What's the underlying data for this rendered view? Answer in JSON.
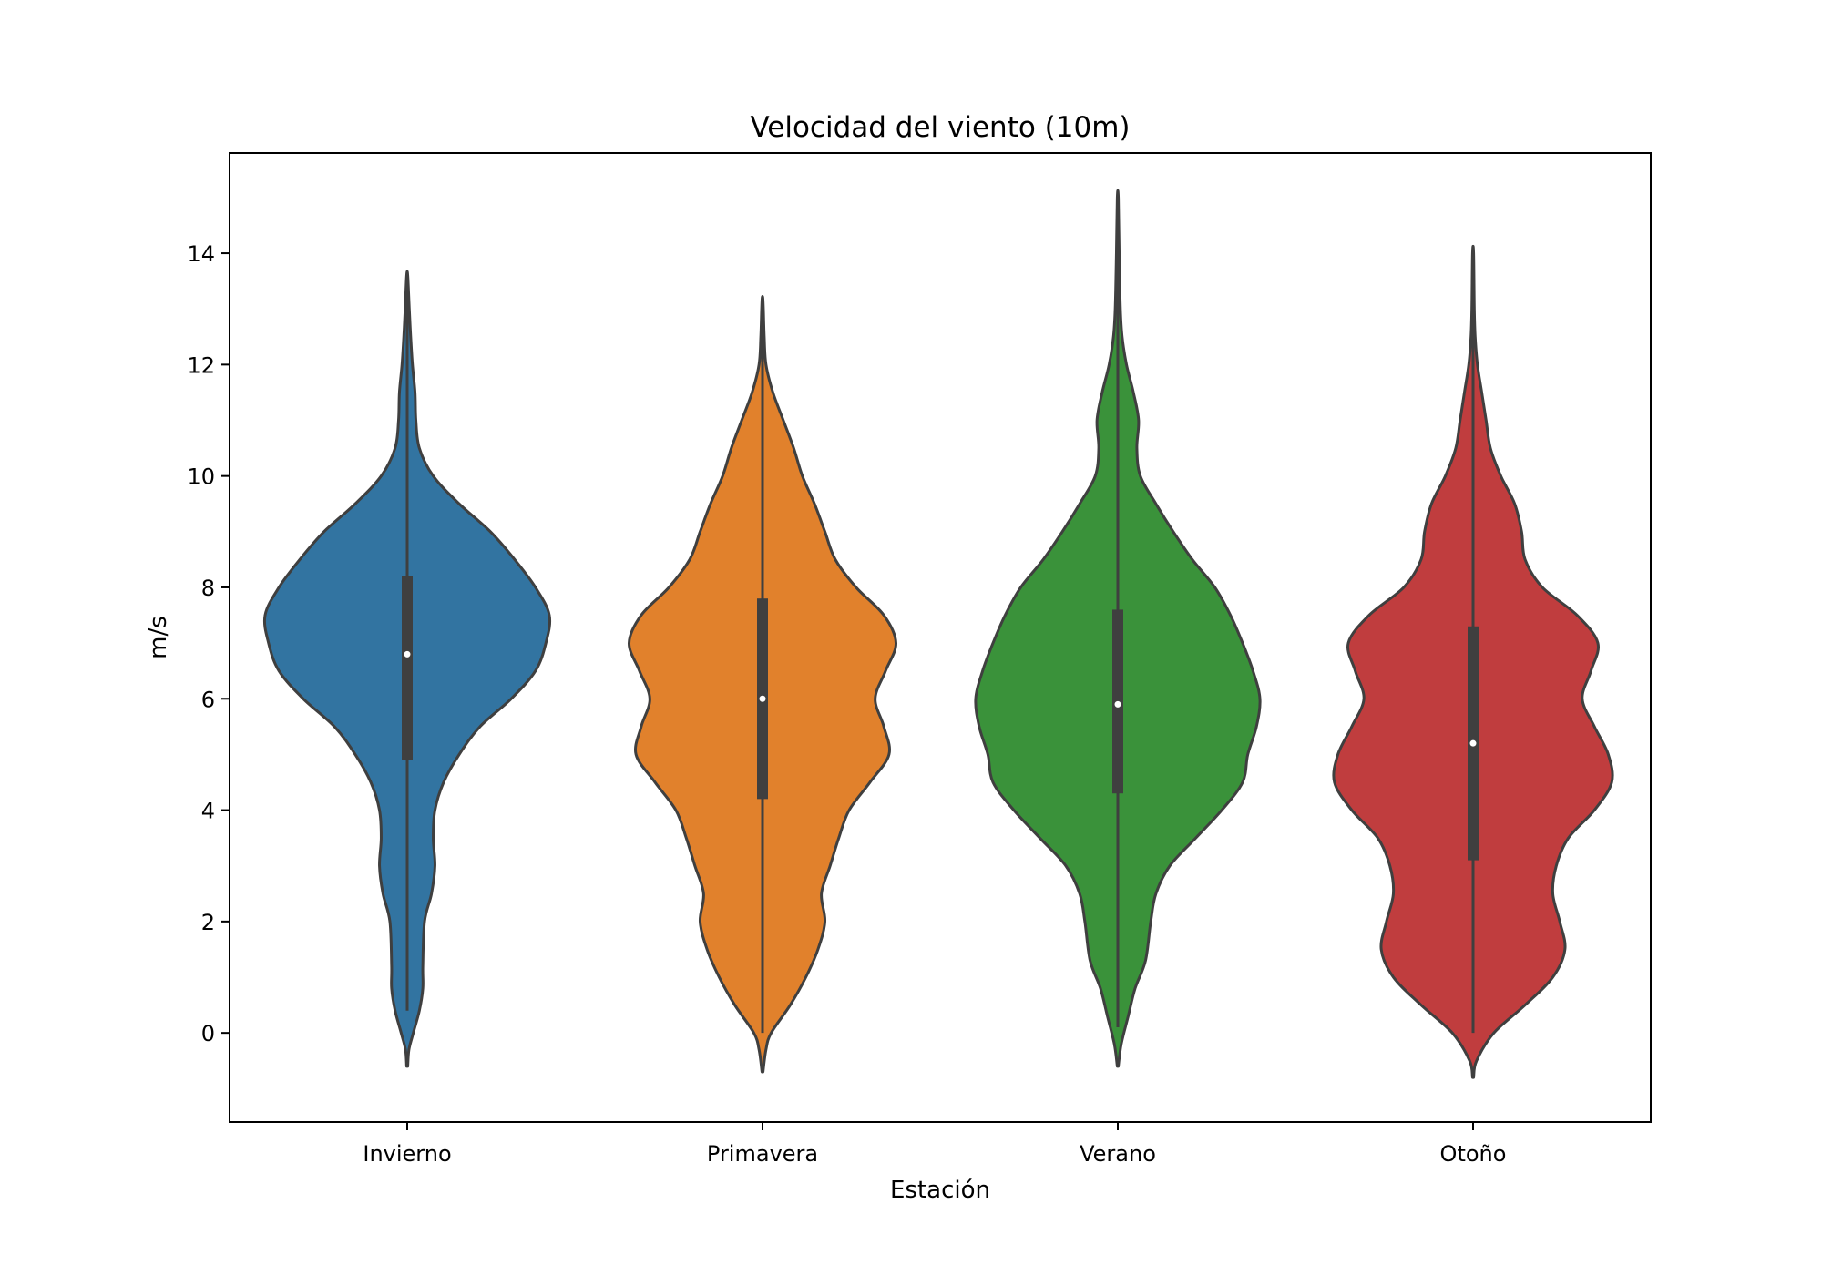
{
  "chart_data": {
    "type": "violin",
    "title": "Velocidad del viento (10m)",
    "xlabel": "Estación",
    "ylabel": "m/s",
    "ylim": [
      -1.6,
      15.8
    ],
    "yticks": [
      0,
      2,
      4,
      6,
      8,
      10,
      12,
      14
    ],
    "grid": false,
    "categories": [
      "Invierno",
      "Primavera",
      "Verano",
      "Otoño"
    ],
    "colors": [
      "#3274a1",
      "#e1812c",
      "#3a923a",
      "#c03d3e"
    ],
    "series": [
      {
        "category": "Invierno",
        "min": 0.4,
        "q1": 4.9,
        "median": 6.8,
        "q3": 8.2,
        "max": 13.6,
        "kde_min": -0.6,
        "kde_max": 13.6,
        "profile": [
          [
            -0.6,
            0.003
          ],
          [
            -0.3,
            0.01
          ],
          [
            0,
            0.035
          ],
          [
            0.4,
            0.07
          ],
          [
            0.8,
            0.09
          ],
          [
            1.2,
            0.09
          ],
          [
            2,
            0.1
          ],
          [
            2.5,
            0.14
          ],
          [
            3,
            0.16
          ],
          [
            3.5,
            0.15
          ],
          [
            4,
            0.16
          ],
          [
            4.5,
            0.21
          ],
          [
            5,
            0.3
          ],
          [
            5.5,
            0.42
          ],
          [
            6,
            0.6
          ],
          [
            6.5,
            0.74
          ],
          [
            7,
            0.8
          ],
          [
            7.5,
            0.82
          ],
          [
            8,
            0.74
          ],
          [
            8.5,
            0.62
          ],
          [
            9,
            0.48
          ],
          [
            9.5,
            0.3
          ],
          [
            10,
            0.15
          ],
          [
            10.5,
            0.07
          ],
          [
            11,
            0.05
          ],
          [
            11.5,
            0.045
          ],
          [
            12,
            0.03
          ],
          [
            12.5,
            0.02
          ],
          [
            13,
            0.012
          ],
          [
            13.6,
            0.003
          ]
        ]
      },
      {
        "category": "Primavera",
        "min": 0.0,
        "q1": 4.2,
        "median": 6.0,
        "q3": 7.8,
        "max": 13.2,
        "kde_min": -0.7,
        "kde_max": 13.2,
        "profile": [
          [
            -0.7,
            0.003
          ],
          [
            -0.3,
            0.02
          ],
          [
            0,
            0.05
          ],
          [
            0.5,
            0.16
          ],
          [
            1,
            0.25
          ],
          [
            1.5,
            0.32
          ],
          [
            2,
            0.36
          ],
          [
            2.5,
            0.34
          ],
          [
            3,
            0.39
          ],
          [
            3.5,
            0.44
          ],
          [
            4,
            0.5
          ],
          [
            4.5,
            0.62
          ],
          [
            5,
            0.73
          ],
          [
            5.5,
            0.7
          ],
          [
            6,
            0.65
          ],
          [
            6.5,
            0.71
          ],
          [
            7,
            0.77
          ],
          [
            7.5,
            0.7
          ],
          [
            8,
            0.54
          ],
          [
            8.5,
            0.42
          ],
          [
            9,
            0.36
          ],
          [
            9.5,
            0.3
          ],
          [
            10,
            0.23
          ],
          [
            10.5,
            0.18
          ],
          [
            11,
            0.12
          ],
          [
            11.5,
            0.06
          ],
          [
            12,
            0.02
          ],
          [
            12.5,
            0.01
          ],
          [
            13,
            0.005
          ],
          [
            13.2,
            0.002
          ]
        ]
      },
      {
        "category": "Verano",
        "min": 0.1,
        "q1": 4.3,
        "median": 5.9,
        "q3": 7.6,
        "max": 15.0,
        "kde_min": -0.6,
        "kde_max": 15.0,
        "profile": [
          [
            -0.6,
            0.003
          ],
          [
            -0.2,
            0.02
          ],
          [
            0.3,
            0.06
          ],
          [
            0.8,
            0.1
          ],
          [
            1.3,
            0.16
          ],
          [
            2,
            0.19
          ],
          [
            2.5,
            0.22
          ],
          [
            3,
            0.3
          ],
          [
            3.5,
            0.45
          ],
          [
            4,
            0.6
          ],
          [
            4.5,
            0.72
          ],
          [
            5,
            0.75
          ],
          [
            5.5,
            0.8
          ],
          [
            6,
            0.82
          ],
          [
            6.5,
            0.78
          ],
          [
            7,
            0.72
          ],
          [
            7.5,
            0.65
          ],
          [
            8,
            0.56
          ],
          [
            8.5,
            0.43
          ],
          [
            9,
            0.32
          ],
          [
            9.5,
            0.22
          ],
          [
            10,
            0.13
          ],
          [
            10.5,
            0.11
          ],
          [
            11,
            0.12
          ],
          [
            11.5,
            0.09
          ],
          [
            12,
            0.05
          ],
          [
            12.5,
            0.025
          ],
          [
            13,
            0.015
          ],
          [
            14,
            0.008
          ],
          [
            15,
            0.003
          ]
        ]
      },
      {
        "category": "Otoño",
        "min": 0.0,
        "q1": 3.1,
        "median": 5.2,
        "q3": 7.3,
        "max": 14.0,
        "kde_min": -0.8,
        "kde_max": 14.0,
        "profile": [
          [
            -0.8,
            0.003
          ],
          [
            -0.5,
            0.02
          ],
          [
            0,
            0.12
          ],
          [
            0.5,
            0.3
          ],
          [
            1,
            0.46
          ],
          [
            1.5,
            0.53
          ],
          [
            2,
            0.5
          ],
          [
            2.5,
            0.46
          ],
          [
            3,
            0.48
          ],
          [
            3.5,
            0.55
          ],
          [
            4,
            0.7
          ],
          [
            4.5,
            0.8
          ],
          [
            5,
            0.78
          ],
          [
            5.5,
            0.7
          ],
          [
            6,
            0.63
          ],
          [
            6.5,
            0.68
          ],
          [
            7,
            0.72
          ],
          [
            7.5,
            0.6
          ],
          [
            8,
            0.4
          ],
          [
            8.5,
            0.3
          ],
          [
            9,
            0.28
          ],
          [
            9.5,
            0.24
          ],
          [
            10,
            0.16
          ],
          [
            10.5,
            0.1
          ],
          [
            11,
            0.075
          ],
          [
            11.5,
            0.05
          ],
          [
            12,
            0.025
          ],
          [
            12.5,
            0.012
          ],
          [
            13,
            0.007
          ],
          [
            14,
            0.003
          ]
        ]
      }
    ]
  }
}
